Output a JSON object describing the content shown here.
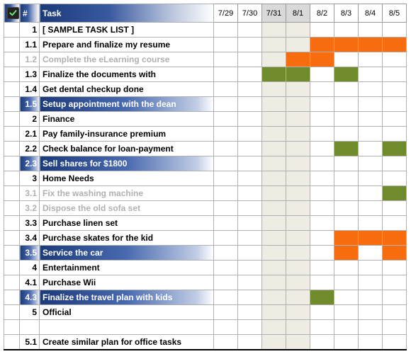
{
  "header": {
    "check_label": "",
    "num_label": "#",
    "task_label": "Task",
    "dates": [
      "7/29",
      "7/30",
      "7/31",
      "8/1",
      "8/2",
      "8/3",
      "8/4",
      "8/5"
    ],
    "shaded_date_cols": [
      2,
      3
    ]
  },
  "colors": {
    "bar_orange": "#f76c0e",
    "bar_olive": "#6f8b2c",
    "shade": "#efece3",
    "header_grad_start": "#1b3a7a",
    "header_grad_end": "#fefefe"
  },
  "rows": [
    {
      "num": "1",
      "task": "[ SAMPLE TASK LIST ]",
      "faded": false,
      "selected": false,
      "bars": {}
    },
    {
      "num": "1.1",
      "task": "Prepare and finalize my resume",
      "faded": false,
      "selected": false,
      "bars": {
        "4": "orange",
        "5": "orange",
        "6": "orange",
        "7": "orange"
      }
    },
    {
      "num": "1.2",
      "task": "Complete the eLearning course",
      "faded": true,
      "selected": false,
      "bars": {
        "3": "orange",
        "4": "orange"
      }
    },
    {
      "num": "1.3",
      "task": "Finalize the documents with",
      "faded": false,
      "selected": false,
      "bars": {
        "2": "olive",
        "3": "olive",
        "5": "olive"
      }
    },
    {
      "num": "1.4",
      "task": "Get dental checkup done",
      "faded": false,
      "selected": false,
      "bars": {}
    },
    {
      "num": "1.5",
      "task": "Setup appointment with the dean",
      "faded": false,
      "selected": true,
      "bars": {}
    },
    {
      "num": "2",
      "task": "Finance",
      "faded": false,
      "selected": false,
      "bars": {}
    },
    {
      "num": "2.1",
      "task": "Pay family-insurance premium",
      "faded": false,
      "selected": false,
      "bars": {}
    },
    {
      "num": "2.2",
      "task": "Check balance for loan-payment",
      "faded": false,
      "selected": false,
      "bars": {
        "5": "olive",
        "7": "olive"
      }
    },
    {
      "num": "2.3",
      "task": "Sell shares for $1800",
      "faded": false,
      "selected": true,
      "bars": {}
    },
    {
      "num": "3",
      "task": "Home Needs",
      "faded": false,
      "selected": false,
      "bars": {}
    },
    {
      "num": "3.1",
      "task": "Fix the washing machine",
      "faded": true,
      "selected": false,
      "bars": {
        "7": "olive"
      }
    },
    {
      "num": "3.2",
      "task": "Dispose the old sofa set",
      "faded": true,
      "selected": false,
      "bars": {}
    },
    {
      "num": "3.3",
      "task": "Purchase linen set",
      "faded": false,
      "selected": false,
      "bars": {}
    },
    {
      "num": "3.4",
      "task": "Purchase skates for the kid",
      "faded": false,
      "selected": false,
      "bars": {
        "5": "orange",
        "6": "orange",
        "7": "orange"
      }
    },
    {
      "num": "3.5",
      "task": "Service the car",
      "faded": false,
      "selected": true,
      "bars": {
        "5": "orange",
        "7": "orange"
      }
    },
    {
      "num": "4",
      "task": "Entertainment",
      "faded": false,
      "selected": false,
      "bars": {}
    },
    {
      "num": "4.1",
      "task": "Purchase Wii",
      "faded": false,
      "selected": false,
      "bars": {}
    },
    {
      "num": "4.3",
      "task": "Finalize the travel plan with kids",
      "faded": false,
      "selected": true,
      "bars": {
        "4": "olive"
      }
    },
    {
      "num": "5",
      "task": "Official",
      "faded": false,
      "selected": false,
      "bars": {}
    },
    {
      "num": "",
      "task": "",
      "faded": false,
      "selected": false,
      "bars": {},
      "blank": true
    },
    {
      "num": "5.1",
      "task": "Create similar plan for office tasks",
      "faded": false,
      "selected": false,
      "bars": {}
    }
  ]
}
